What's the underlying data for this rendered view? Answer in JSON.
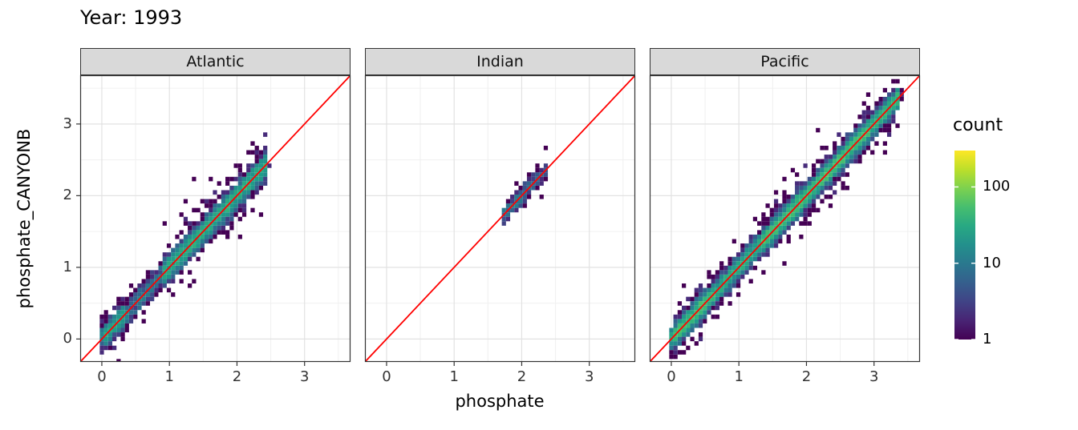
{
  "chart_data": {
    "type": "heatmap",
    "subtype": "2d-binned-scatter-faceted",
    "title": "Year: 1993",
    "xlabel": "phosphate",
    "ylabel": "phosphate_CANYONB",
    "x_ticks": [
      0,
      1,
      2,
      3
    ],
    "y_ticks": [
      0,
      1,
      2,
      3
    ],
    "xlim": [
      -0.32,
      3.68
    ],
    "ylim": [
      -0.32,
      3.68
    ],
    "grid": "on",
    "binwidth": 0.062,
    "reference_line": {
      "type": "identity",
      "equation": "y = x",
      "color": "#ff0000"
    },
    "legend": {
      "title": "count",
      "scale": "log10",
      "breaks": [
        100,
        10,
        1
      ],
      "range": [
        1,
        300
      ],
      "position": "right",
      "colormap": "viridis"
    },
    "facets": [
      {
        "label": "Atlantic",
        "diagonal_extent": [
          0.02,
          2.45
        ],
        "n_points": 4200,
        "max_bin_count": 110,
        "segments": [
          [
            0.0,
            0.35,
            1.6
          ],
          [
            0.35,
            0.9,
            0.55
          ],
          [
            0.9,
            2.45,
            1.9
          ]
        ],
        "spread": 0.085,
        "outlier_rate": 0.05,
        "outlier_mult": 3.2,
        "seed": 11
      },
      {
        "label": "Indian",
        "diagonal_extent": [
          1.72,
          2.38
        ],
        "n_points": 260,
        "max_bin_count": 30,
        "segments": [
          [
            1.72,
            2.05,
            1.4
          ],
          [
            2.05,
            2.38,
            0.8
          ]
        ],
        "spread": 0.055,
        "outlier_rate": 0.06,
        "outlier_mult": 2.5,
        "seed": 22
      },
      {
        "label": "Pacific",
        "diagonal_extent": [
          0.02,
          3.38
        ],
        "n_points": 9000,
        "max_bin_count": 150,
        "segments": [
          [
            0.0,
            0.55,
            1.5
          ],
          [
            0.55,
            1.35,
            1.0
          ],
          [
            1.35,
            2.9,
            1.5
          ],
          [
            2.9,
            3.38,
            1.2
          ]
        ],
        "spread": 0.075,
        "outlier_rate": 0.05,
        "outlier_mult": 3.0,
        "seed": 33
      }
    ]
  },
  "colors": {
    "strip_fill": "#d9d9d9",
    "panel_border": "#333333",
    "grid_major": "#e2e2e2",
    "grid_minor": "#f0f0f0",
    "reference_line": "#ff0000",
    "background": "#ffffff",
    "tick_text": "#333333",
    "text": "#000000"
  }
}
